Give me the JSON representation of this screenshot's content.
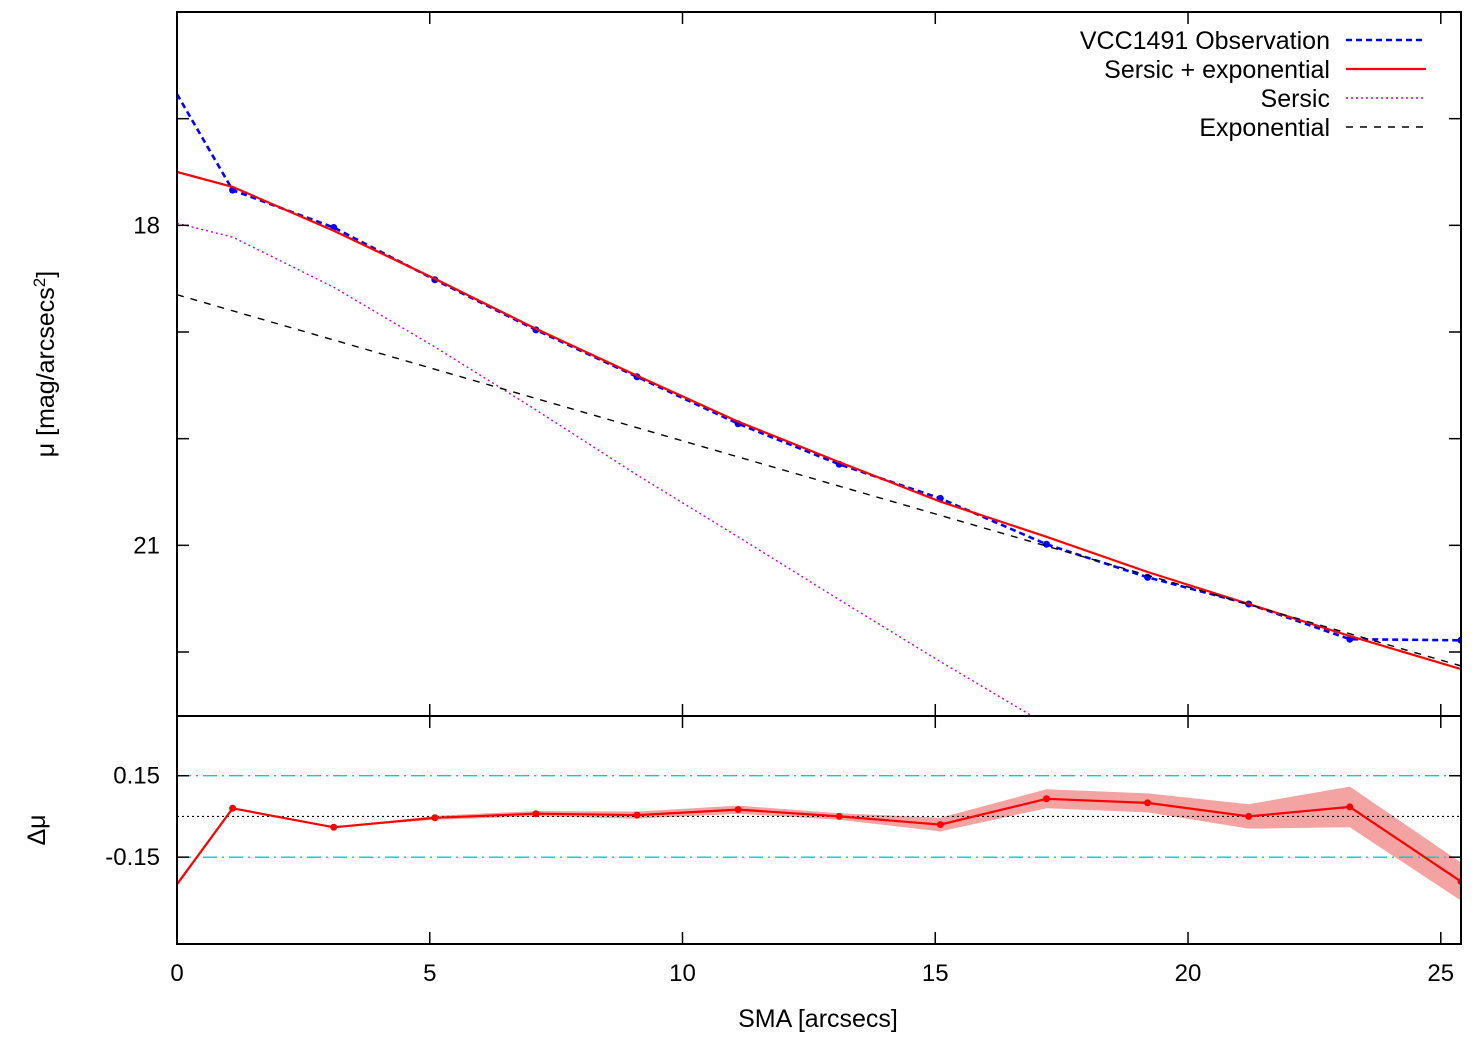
{
  "chart_data": [
    {
      "type": "line",
      "panel": "profile",
      "xlabel": "SMA [arcsecs]",
      "ylabel": "μ [mag/arcsecs",
      "ylabel_sup": "2",
      "ylabel_close": "]",
      "xlim": [
        0,
        25.4
      ],
      "ylim": [
        16.0,
        22.6
      ],
      "y_inverted": true,
      "yticks": [
        17,
        18,
        19,
        20,
        21,
        22
      ],
      "ytick_labels": [
        "",
        "18",
        "",
        "",
        "21",
        ""
      ],
      "xticks": [
        0,
        5,
        10,
        15,
        20,
        25
      ],
      "legend_placement": "top-right",
      "grid": false,
      "series": [
        {
          "name": "VCC1491 Observation",
          "style": "dashed-points",
          "color": "#0000ff",
          "x": [
            0,
            1.1,
            3.1,
            5.1,
            7.1,
            9.1,
            11.1,
            13.1,
            15.1,
            17.2,
            19.2,
            21.2,
            23.2,
            25.4
          ],
          "y": [
            16.77,
            17.67,
            18.02,
            18.51,
            18.98,
            19.42,
            19.86,
            20.24,
            20.56,
            20.99,
            21.3,
            21.55,
            21.88,
            21.89
          ]
        },
        {
          "name": "Sersic + exponential",
          "style": "solid",
          "color": "#ff0000",
          "x": [
            0,
            1.1,
            3.1,
            5.1,
            7.1,
            9.1,
            11.1,
            13.1,
            15.1,
            17.2,
            19.2,
            21.2,
            23.2,
            25.4
          ],
          "y": [
            17.5,
            17.64,
            18.05,
            18.5,
            18.97,
            19.41,
            19.84,
            20.22,
            20.59,
            20.92,
            21.25,
            21.55,
            21.85,
            22.16
          ]
        },
        {
          "name": "Sersic",
          "style": "dotted",
          "color": "#cc00cc",
          "x": [
            0,
            1.1,
            3.1,
            5.1,
            7.1,
            9.1,
            11.1,
            13.1,
            15.1,
            17.2,
            18.7
          ],
          "y": [
            17.98,
            18.11,
            18.58,
            19.14,
            19.73,
            20.34,
            20.92,
            21.51,
            22.09,
            22.68,
            23.1
          ]
        },
        {
          "name": "Exponential",
          "style": "dashed",
          "color": "#000000",
          "x": [
            0,
            25.4
          ],
          "y": [
            18.65,
            22.13
          ]
        }
      ]
    },
    {
      "type": "line",
      "panel": "residuals",
      "xlabel": "SMA [arcsecs]",
      "ylabel": "Δμ",
      "xlim": [
        0,
        25.4
      ],
      "ylim": [
        -0.47,
        0.37
      ],
      "yticks": [
        0.15,
        -0.15
      ],
      "ytick_labels": [
        "0.15",
        "-0.15"
      ],
      "xticks": [
        0,
        5,
        10,
        15,
        20,
        25
      ],
      "xtick_labels": [
        "0",
        "5",
        "10",
        "15",
        "20",
        "25"
      ],
      "reference_lines": [
        {
          "y": 0.15,
          "style": "dash-dot",
          "color": "#00cccc"
        },
        {
          "y": -0.15,
          "style": "dash-dot",
          "color": "#00cccc"
        },
        {
          "y": 0.0,
          "style": "dotted",
          "color": "#000000"
        }
      ],
      "series": [
        {
          "style": "solid-points-with-band",
          "color": "#ff0000",
          "band_color": "#f4a3a3",
          "x": [
            0,
            1.1,
            3.1,
            5.1,
            7.1,
            9.1,
            11.1,
            13.1,
            15.1,
            17.2,
            19.2,
            21.2,
            23.2,
            25.4
          ],
          "y": [
            -0.25,
            0.03,
            -0.04,
            -0.005,
            0.01,
            0.005,
            0.025,
            0.0,
            -0.03,
            0.065,
            0.05,
            0.0,
            0.035,
            -0.24
          ],
          "band_lower": [
            -0.25,
            0.03,
            -0.04,
            -0.012,
            0.0,
            -0.008,
            0.01,
            -0.012,
            -0.055,
            0.03,
            0.015,
            -0.045,
            -0.04,
            -0.31
          ],
          "band_upper": [
            -0.25,
            0.03,
            -0.04,
            0.002,
            0.02,
            0.018,
            0.04,
            0.012,
            -0.005,
            0.1,
            0.085,
            0.045,
            0.11,
            -0.17
          ]
        }
      ]
    }
  ]
}
